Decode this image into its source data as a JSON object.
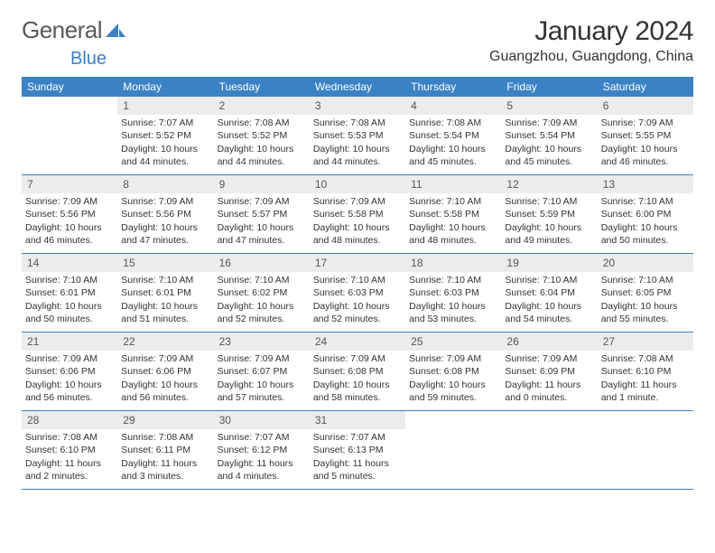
{
  "logo": {
    "text1": "General",
    "text2": "Blue"
  },
  "title": "January 2024",
  "location": "Guangzhou, Guangdong, China",
  "colors": {
    "header_bg": "#3b82c4",
    "header_text": "#ffffff",
    "daynum_bg": "#ececec",
    "border": "#3b82c4",
    "logo_blue": "#3b7fc4"
  },
  "day_names": [
    "Sunday",
    "Monday",
    "Tuesday",
    "Wednesday",
    "Thursday",
    "Friday",
    "Saturday"
  ],
  "weeks": [
    [
      null,
      {
        "n": "1",
        "sr": "7:07 AM",
        "ss": "5:52 PM",
        "dl": "10 hours and 44 minutes."
      },
      {
        "n": "2",
        "sr": "7:08 AM",
        "ss": "5:52 PM",
        "dl": "10 hours and 44 minutes."
      },
      {
        "n": "3",
        "sr": "7:08 AM",
        "ss": "5:53 PM",
        "dl": "10 hours and 44 minutes."
      },
      {
        "n": "4",
        "sr": "7:08 AM",
        "ss": "5:54 PM",
        "dl": "10 hours and 45 minutes."
      },
      {
        "n": "5",
        "sr": "7:09 AM",
        "ss": "5:54 PM",
        "dl": "10 hours and 45 minutes."
      },
      {
        "n": "6",
        "sr": "7:09 AM",
        "ss": "5:55 PM",
        "dl": "10 hours and 46 minutes."
      }
    ],
    [
      {
        "n": "7",
        "sr": "7:09 AM",
        "ss": "5:56 PM",
        "dl": "10 hours and 46 minutes."
      },
      {
        "n": "8",
        "sr": "7:09 AM",
        "ss": "5:56 PM",
        "dl": "10 hours and 47 minutes."
      },
      {
        "n": "9",
        "sr": "7:09 AM",
        "ss": "5:57 PM",
        "dl": "10 hours and 47 minutes."
      },
      {
        "n": "10",
        "sr": "7:09 AM",
        "ss": "5:58 PM",
        "dl": "10 hours and 48 minutes."
      },
      {
        "n": "11",
        "sr": "7:10 AM",
        "ss": "5:58 PM",
        "dl": "10 hours and 48 minutes."
      },
      {
        "n": "12",
        "sr": "7:10 AM",
        "ss": "5:59 PM",
        "dl": "10 hours and 49 minutes."
      },
      {
        "n": "13",
        "sr": "7:10 AM",
        "ss": "6:00 PM",
        "dl": "10 hours and 50 minutes."
      }
    ],
    [
      {
        "n": "14",
        "sr": "7:10 AM",
        "ss": "6:01 PM",
        "dl": "10 hours and 50 minutes."
      },
      {
        "n": "15",
        "sr": "7:10 AM",
        "ss": "6:01 PM",
        "dl": "10 hours and 51 minutes."
      },
      {
        "n": "16",
        "sr": "7:10 AM",
        "ss": "6:02 PM",
        "dl": "10 hours and 52 minutes."
      },
      {
        "n": "17",
        "sr": "7:10 AM",
        "ss": "6:03 PM",
        "dl": "10 hours and 52 minutes."
      },
      {
        "n": "18",
        "sr": "7:10 AM",
        "ss": "6:03 PM",
        "dl": "10 hours and 53 minutes."
      },
      {
        "n": "19",
        "sr": "7:10 AM",
        "ss": "6:04 PM",
        "dl": "10 hours and 54 minutes."
      },
      {
        "n": "20",
        "sr": "7:10 AM",
        "ss": "6:05 PM",
        "dl": "10 hours and 55 minutes."
      }
    ],
    [
      {
        "n": "21",
        "sr": "7:09 AM",
        "ss": "6:06 PM",
        "dl": "10 hours and 56 minutes."
      },
      {
        "n": "22",
        "sr": "7:09 AM",
        "ss": "6:06 PM",
        "dl": "10 hours and 56 minutes."
      },
      {
        "n": "23",
        "sr": "7:09 AM",
        "ss": "6:07 PM",
        "dl": "10 hours and 57 minutes."
      },
      {
        "n": "24",
        "sr": "7:09 AM",
        "ss": "6:08 PM",
        "dl": "10 hours and 58 minutes."
      },
      {
        "n": "25",
        "sr": "7:09 AM",
        "ss": "6:08 PM",
        "dl": "10 hours and 59 minutes."
      },
      {
        "n": "26",
        "sr": "7:09 AM",
        "ss": "6:09 PM",
        "dl": "11 hours and 0 minutes."
      },
      {
        "n": "27",
        "sr": "7:08 AM",
        "ss": "6:10 PM",
        "dl": "11 hours and 1 minute."
      }
    ],
    [
      {
        "n": "28",
        "sr": "7:08 AM",
        "ss": "6:10 PM",
        "dl": "11 hours and 2 minutes."
      },
      {
        "n": "29",
        "sr": "7:08 AM",
        "ss": "6:11 PM",
        "dl": "11 hours and 3 minutes."
      },
      {
        "n": "30",
        "sr": "7:07 AM",
        "ss": "6:12 PM",
        "dl": "11 hours and 4 minutes."
      },
      {
        "n": "31",
        "sr": "7:07 AM",
        "ss": "6:13 PM",
        "dl": "11 hours and 5 minutes."
      },
      null,
      null,
      null
    ]
  ],
  "labels": {
    "sunrise": "Sunrise: ",
    "sunset": "Sunset: ",
    "daylight": "Daylight: "
  }
}
